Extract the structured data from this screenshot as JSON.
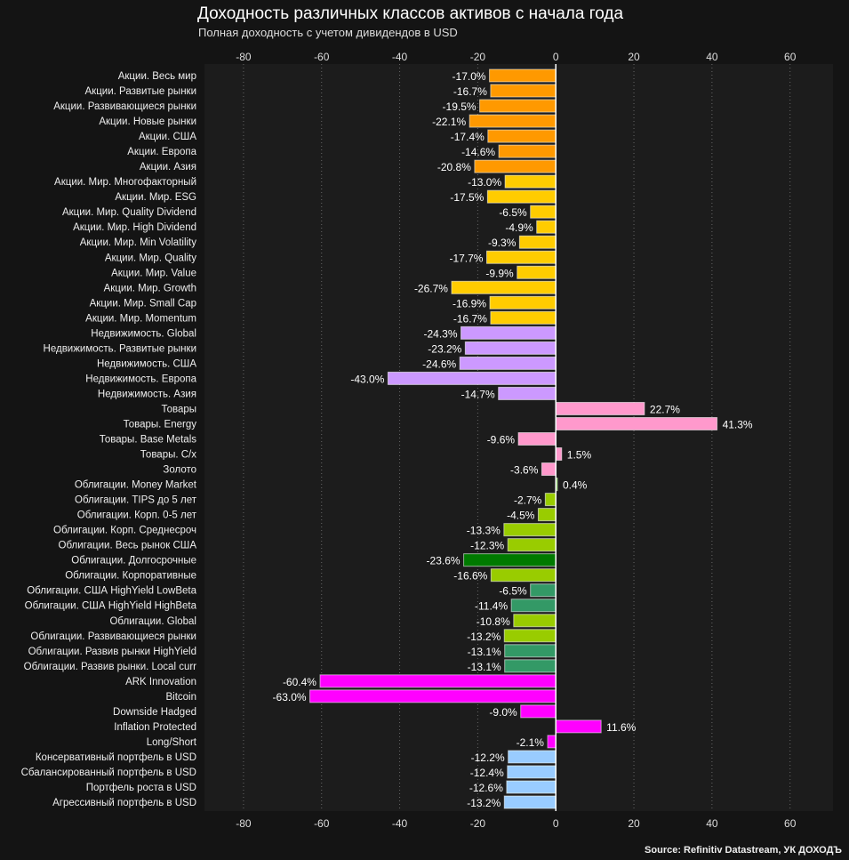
{
  "chart_data": {
    "type": "bar",
    "orientation": "horizontal",
    "title": "Доходность различных классов активов с начала года",
    "subtitle": "Полная доходность с учетом дивидендов в USD",
    "source": "Source: Refinitiv Datastream, УК ДОХОДЪ",
    "xlabel": "",
    "ylabel": "",
    "xlim": [
      -90,
      71
    ],
    "xticks": [
      -80,
      -60,
      -40,
      -20,
      0,
      20,
      40,
      60
    ],
    "grid": true,
    "value_suffix": "%",
    "categories": [
      "Акции. Весь мир",
      "Акции. Развитые рынки",
      "Акции. Развивающиеся рынки",
      "Акции. Новые рынки",
      "Акции. США",
      "Акции. Европа",
      "Акции. Азия",
      "Акции. Мир. Многофакторный",
      "Акции. Мир. ESG",
      "Акции. Мир. Quality Dividend",
      "Акции. Мир. High Dividend",
      "Акции. Мир. Min Volatility",
      "Акции. Мир. Quality",
      "Акции. Мир. Value",
      "Акции. Мир. Growth",
      "Акции. Мир. Small Cap",
      "Акции. Мир. Momentum",
      "Недвижимость. Global",
      "Недвижимость. Развитые рынки",
      "Недвижимость. США",
      "Недвижимость. Европа",
      "Недвижимость. Азия",
      "Товары",
      "Товары. Energy",
      "Товары. Base Metals",
      "Товары. С/х",
      "Золото",
      "Облигации. Money Market",
      "Облигации. TIPS до 5 лет",
      "Облигации. Корп. 0-5 лет",
      "Облигации. Корп. Среднесроч",
      "Облигации. Весь рынок США",
      "Облигации. Долгосрочные",
      "Облигации. Корпоративные",
      "Облигации. США HighYield LowBeta",
      "Облигации. США HighYield HighBeta",
      "Облигации. Global",
      "Облигации. Развивающиеся рынки",
      "Облигации. Развив рынки HighYield",
      "Облигации. Развив рынки. Local curr",
      "ARK Innovation",
      "Bitcoin",
      "Downside Hadged",
      "Inflation Protected",
      "Long/Short",
      "Консервативный портфель в USD",
      "Сбалансированный портфель в USD",
      "Портфель роста в USD",
      "Агрессивный портфель в USD"
    ],
    "values": [
      -17.0,
      -16.7,
      -19.5,
      -22.1,
      -17.4,
      -14.6,
      -20.8,
      -13.0,
      -17.5,
      -6.5,
      -4.9,
      -9.3,
      -17.7,
      -9.9,
      -26.7,
      -16.9,
      -16.7,
      -24.3,
      -23.2,
      -24.6,
      -43.0,
      -14.7,
      22.7,
      41.3,
      -9.6,
      1.5,
      -3.6,
      0.4,
      -2.7,
      -4.5,
      -13.3,
      -12.3,
      -23.6,
      -16.6,
      -6.5,
      -11.4,
      -10.8,
      -13.2,
      -13.1,
      -13.1,
      -60.4,
      -63.0,
      -9.0,
      11.6,
      -2.1,
      -12.2,
      -12.4,
      -12.6,
      -13.2
    ],
    "colors": [
      "#ff9900",
      "#ff9900",
      "#ff9900",
      "#ff9900",
      "#ff9900",
      "#ff9900",
      "#ff9900",
      "#ffcc00",
      "#ffcc00",
      "#ffcc00",
      "#ffcc00",
      "#ffcc00",
      "#ffcc00",
      "#ffcc00",
      "#ffcc00",
      "#ffcc00",
      "#ffcc00",
      "#cc99ff",
      "#cc99ff",
      "#cc99ff",
      "#cc99ff",
      "#cc99ff",
      "#ff99cc",
      "#ff99cc",
      "#ff99cc",
      "#ff99cc",
      "#ff99cc",
      "#66cc33",
      "#99cc00",
      "#99cc00",
      "#99cc00",
      "#99cc00",
      "#007a00",
      "#99cc00",
      "#339966",
      "#339966",
      "#99cc00",
      "#99cc00",
      "#339966",
      "#339966",
      "#ff00ff",
      "#ff00ff",
      "#ff00ff",
      "#ff00ff",
      "#ff00ff",
      "#99ccff",
      "#99ccff",
      "#99ccff",
      "#99ccff"
    ]
  }
}
